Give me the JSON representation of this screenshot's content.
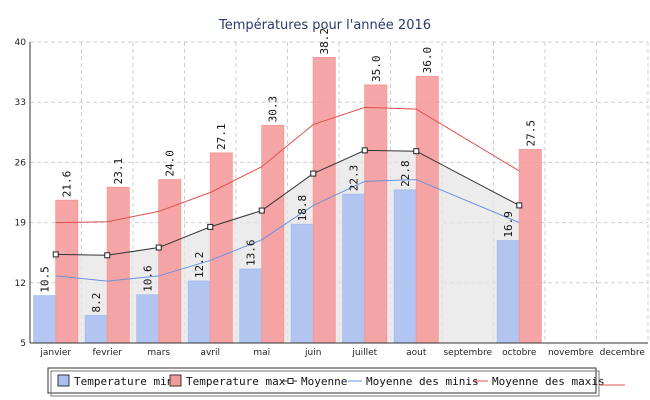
{
  "chart_data": {
    "type": "bar",
    "title": "Températures pour l'année 2016",
    "categories": [
      "janvier",
      "fevrier",
      "mars",
      "avril",
      "mai",
      "juin",
      "juillet",
      "aout",
      "septembre",
      "octobre",
      "novembre",
      "decembre"
    ],
    "ylim": [
      5,
      40
    ],
    "yticks": [
      5,
      12,
      19,
      26,
      33,
      40
    ],
    "grid": true,
    "legend_position": "bottom",
    "series": [
      {
        "name": "Temperature min",
        "kind": "bar",
        "color": "#a9bff0",
        "values": [
          10.5,
          8.2,
          10.6,
          12.2,
          13.6,
          18.8,
          22.3,
          22.8,
          null,
          16.9,
          null,
          null
        ],
        "labels": [
          "10.5",
          "8.2",
          "10.6",
          "12.2",
          "13.6",
          "18.8",
          "22.3",
          "22.8",
          null,
          "16.9",
          null,
          null
        ]
      },
      {
        "name": "Temperature max",
        "kind": "bar",
        "color": "#f59a9a",
        "values": [
          21.6,
          23.1,
          24.0,
          27.1,
          30.3,
          38.2,
          35.0,
          36.0,
          null,
          27.5,
          null,
          null
        ],
        "labels": [
          "21.6",
          "23.1",
          "24.0",
          "27.1",
          "30.3",
          "38.2",
          "35.0",
          "36.0",
          null,
          "27.5",
          null,
          null
        ]
      },
      {
        "name": "Moyenne",
        "kind": "line",
        "color": "#333333",
        "values": [
          15.3,
          15.2,
          16.1,
          18.5,
          20.4,
          24.7,
          27.4,
          27.3,
          null,
          21.0,
          null,
          null
        ]
      },
      {
        "name": "Moyenne des minis",
        "kind": "line",
        "color": "#6a8fe0",
        "values": [
          12.8,
          12.2,
          12.8,
          14.6,
          17.0,
          21.0,
          23.8,
          24.0,
          null,
          19.0,
          null,
          null
        ]
      },
      {
        "name": "Moyenne des maxis",
        "kind": "line",
        "color": "#e05050",
        "values": [
          19.0,
          19.1,
          20.3,
          22.5,
          25.5,
          30.4,
          32.4,
          32.2,
          null,
          25.0,
          null,
          null
        ]
      }
    ]
  }
}
